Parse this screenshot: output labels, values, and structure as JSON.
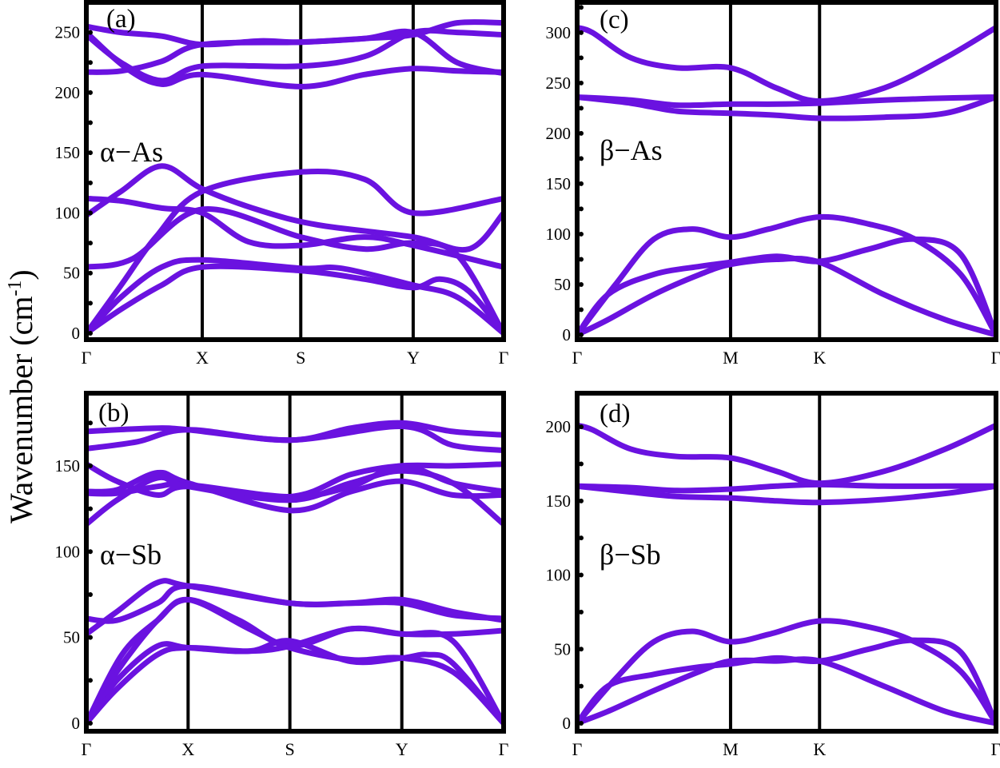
{
  "figure": {
    "ylabel_main": "Wavenumber",
    "ylabel_unit_open": "(cm",
    "ylabel_unit_sup": "-1",
    "ylabel_unit_close": ")",
    "line_color": "#6a12e0"
  },
  "chart_data": [
    {
      "type": "line",
      "panel_label": "(a)",
      "material": "α−As",
      "ylim": [
        0,
        275
      ],
      "yticks": [
        0,
        50,
        100,
        150,
        200,
        250
      ],
      "xticks": [
        "Γ",
        "X",
        "S",
        "Y",
        "Γ"
      ],
      "xtick_positions": [
        0,
        1,
        1.85,
        2.82,
        3.6
      ],
      "series": [
        {
          "x": [
            0,
            0.3,
            0.6,
            1.0,
            1.85,
            2.4,
            2.82,
            3.6
          ],
          "y": [
            0,
            40,
            80,
            118,
            134,
            128,
            100,
            112
          ]
        },
        {
          "x": [
            0,
            0.3,
            0.65,
            1.0,
            1.4,
            1.85,
            2.4,
            2.82,
            3.6
          ],
          "y": [
            112,
            110,
            104,
            100,
            76,
            73,
            80,
            73,
            55
          ]
        },
        {
          "x": [
            0,
            0.3,
            0.65,
            1.0,
            1.5,
            2.0,
            2.82,
            3.3,
            3.6
          ],
          "y": [
            98,
            118,
            139,
            120,
            102,
            90,
            80,
            70,
            100
          ]
        },
        {
          "x": [
            0,
            0.4,
            1.0,
            1.85,
            2.4,
            2.82,
            3.2,
            3.6
          ],
          "y": [
            55,
            62,
            103,
            80,
            70,
            75,
            65,
            0
          ]
        },
        {
          "x": [
            0,
            0.3,
            0.65,
            1.0,
            1.85,
            2.2,
            2.82,
            3.2,
            3.6
          ],
          "y": [
            0,
            30,
            55,
            61,
            54,
            54,
            40,
            30,
            0
          ]
        },
        {
          "x": [
            0,
            0.3,
            0.65,
            1.0,
            1.85,
            2.4,
            2.82,
            3.05,
            3.3,
            3.6
          ],
          "y": [
            0,
            20,
            40,
            55,
            52,
            45,
            38,
            45,
            35,
            0
          ]
        },
        {
          "x": [
            0,
            0.3,
            0.65,
            1.0,
            1.5,
            1.85,
            2.4,
            2.82,
            3.2,
            3.6
          ],
          "y": [
            255,
            250,
            247,
            240,
            243,
            242,
            245,
            248,
            258,
            258
          ]
        },
        {
          "x": [
            0,
            0.3,
            0.65,
            1.0,
            1.85,
            2.4,
            2.82,
            3.2,
            3.6
          ],
          "y": [
            248,
            225,
            210,
            222,
            222,
            230,
            250,
            250,
            248
          ]
        },
        {
          "x": [
            0,
            0.35,
            0.65,
            1.0,
            1.85,
            2.4,
            2.82,
            3.2,
            3.6
          ],
          "y": [
            250,
            220,
            207,
            215,
            205,
            215,
            220,
            218,
            217
          ]
        },
        {
          "x": [
            0,
            0.3,
            0.65,
            1.0,
            1.85,
            2.4,
            2.82,
            3.2,
            3.6
          ],
          "y": [
            217,
            218,
            226,
            240,
            242,
            245,
            250,
            225,
            216
          ]
        }
      ]
    },
    {
      "type": "line",
      "panel_label": "(b)",
      "material": "α−Sb",
      "ylim": [
        0,
        190
      ],
      "yticks": [
        0,
        50,
        100,
        150
      ],
      "xticks": [
        "Γ",
        "X",
        "S",
        "Y",
        "Γ"
      ],
      "xtick_positions": [
        0,
        1,
        2,
        3.1,
        4.1
      ],
      "series": [
        {
          "x": [
            0,
            0.3,
            0.7,
            1.0,
            2.0,
            2.6,
            3.1,
            3.6,
            4.1
          ],
          "y": [
            170,
            171,
            172,
            171,
            165,
            172,
            175,
            170,
            168
          ]
        },
        {
          "x": [
            0,
            0.5,
            1.0,
            2.0,
            3.1,
            3.6,
            4.1
          ],
          "y": [
            160,
            164,
            171,
            165,
            173,
            162,
            159
          ]
        },
        {
          "x": [
            0,
            0.3,
            0.7,
            1.0,
            2.0,
            2.6,
            3.1,
            3.6,
            4.1
          ],
          "y": [
            151,
            141,
            133,
            138,
            132,
            145,
            150,
            150,
            151
          ]
        },
        {
          "x": [
            0,
            0.3,
            0.7,
            1.0,
            2.0,
            2.6,
            3.1,
            3.6,
            4.1
          ],
          "y": [
            135,
            136,
            146,
            140,
            124,
            135,
            141,
            133,
            133
          ]
        },
        {
          "x": [
            0,
            0.3,
            0.7,
            1.0,
            2.0,
            2.6,
            3.1,
            3.6,
            4.1
          ],
          "y": [
            116,
            130,
            143,
            138,
            130,
            140,
            147,
            140,
            116
          ]
        },
        {
          "x": [
            0,
            0.3,
            0.7,
            1.0,
            2.0,
            2.6,
            3.1,
            3.6,
            4.1
          ],
          "y": [
            134,
            134,
            138,
            139,
            132,
            138,
            150,
            140,
            135
          ]
        },
        {
          "x": [
            0,
            0.3,
            0.7,
            1.0,
            2.0,
            2.6,
            3.1,
            3.6,
            4.1
          ],
          "y": [
            52,
            65,
            82,
            80,
            70,
            70,
            72,
            65,
            60
          ]
        },
        {
          "x": [
            0,
            0.3,
            0.7,
            1.0,
            2.0,
            2.6,
            3.1,
            3.6,
            4.1
          ],
          "y": [
            61,
            60,
            70,
            80,
            70,
            70,
            70,
            63,
            61
          ]
        },
        {
          "x": [
            0,
            0.3,
            0.7,
            1.0,
            1.5,
            2.0,
            2.6,
            3.1,
            3.6,
            4.1
          ],
          "y": [
            0,
            30,
            60,
            72,
            60,
            45,
            55,
            52,
            52,
            54
          ]
        },
        {
          "x": [
            0,
            0.35,
            0.7,
            1.0,
            1.6,
            2.0,
            2.6,
            3.1,
            3.6,
            4.1
          ],
          "y": [
            0,
            40,
            60,
            72,
            55,
            44,
            37,
            38,
            30,
            0
          ]
        },
        {
          "x": [
            0,
            0.3,
            0.7,
            1.0,
            1.6,
            2.0,
            2.6,
            3.1,
            3.35,
            3.6,
            4.1
          ],
          "y": [
            0,
            25,
            45,
            44,
            42,
            48,
            36,
            38,
            40,
            35,
            0
          ]
        },
        {
          "x": [
            0,
            0.3,
            0.7,
            1.0,
            1.6,
            2.0,
            2.6,
            3.1,
            3.6,
            4.1
          ],
          "y": [
            0,
            20,
            40,
            44,
            42,
            45,
            55,
            52,
            48,
            0
          ]
        }
      ]
    },
    {
      "type": "line",
      "panel_label": "(c)",
      "material": "β−As",
      "ylim": [
        0,
        330
      ],
      "yticks": [
        0,
        50,
        100,
        150,
        200,
        250,
        300
      ],
      "xticks": [
        "Γ",
        "M",
        "K",
        "Γ"
      ],
      "xtick_positions": [
        0,
        1,
        1.58,
        2.73
      ],
      "series": [
        {
          "x": [
            0,
            0.1,
            0.35,
            0.65,
            1.0,
            1.3,
            1.58,
            2.0,
            2.4,
            2.73
          ],
          "y": [
            305,
            300,
            275,
            265,
            265,
            245,
            232,
            245,
            275,
            305
          ]
        },
        {
          "x": [
            0,
            0.35,
            0.65,
            1.0,
            1.3,
            1.58,
            2.0,
            2.4,
            2.73
          ],
          "y": [
            236,
            233,
            228,
            229,
            229,
            230,
            233,
            235,
            236
          ]
        },
        {
          "x": [
            0,
            0.35,
            0.65,
            1.0,
            1.3,
            1.58,
            2.0,
            2.4,
            2.73
          ],
          "y": [
            236,
            230,
            222,
            220,
            218,
            215,
            216,
            220,
            236
          ]
        },
        {
          "x": [
            0,
            0.25,
            0.5,
            0.75,
            1.0,
            1.25,
            1.58,
            1.9,
            2.2,
            2.5,
            2.73
          ],
          "y": [
            0,
            50,
            95,
            105,
            97,
            105,
            117,
            110,
            95,
            60,
            0
          ]
        },
        {
          "x": [
            0,
            0.2,
            0.5,
            0.8,
            1.0,
            1.3,
            1.58,
            1.9,
            2.2,
            2.5,
            2.73
          ],
          "y": [
            0,
            40,
            60,
            68,
            72,
            78,
            73,
            85,
            95,
            80,
            0
          ]
        },
        {
          "x": [
            0,
            0.2,
            0.5,
            0.8,
            1.0,
            1.3,
            1.58,
            2.0,
            2.4,
            2.73
          ],
          "y": [
            0,
            15,
            40,
            60,
            70,
            75,
            72,
            40,
            15,
            0
          ]
        }
      ]
    },
    {
      "type": "line",
      "panel_label": "(d)",
      "material": "β−Sb",
      "ylim": [
        0,
        220
      ],
      "yticks": [
        0,
        50,
        100,
        150,
        200
      ],
      "xticks": [
        "Γ",
        "M",
        "K",
        "Γ"
      ],
      "xtick_positions": [
        0,
        1,
        1.58,
        2.73
      ],
      "series": [
        {
          "x": [
            0,
            0.1,
            0.35,
            0.65,
            1.0,
            1.3,
            1.58,
            2.0,
            2.4,
            2.73
          ],
          "y": [
            201,
            198,
            185,
            180,
            179,
            170,
            162,
            170,
            185,
            201
          ]
        },
        {
          "x": [
            0,
            0.35,
            0.65,
            1.0,
            1.3,
            1.58,
            2.0,
            2.4,
            2.73
          ],
          "y": [
            160,
            159,
            157,
            158,
            160,
            161,
            160,
            160,
            160
          ]
        },
        {
          "x": [
            0,
            0.35,
            0.65,
            1.0,
            1.3,
            1.58,
            2.0,
            2.4,
            2.73
          ],
          "y": [
            160,
            156,
            153,
            152,
            150,
            149,
            151,
            155,
            160
          ]
        },
        {
          "x": [
            0,
            0.25,
            0.5,
            0.75,
            1.0,
            1.25,
            1.58,
            1.9,
            2.2,
            2.5,
            2.73
          ],
          "y": [
            0,
            30,
            55,
            62,
            55,
            60,
            69,
            65,
            55,
            35,
            0
          ]
        },
        {
          "x": [
            0,
            0.2,
            0.5,
            0.8,
            1.0,
            1.3,
            1.58,
            1.9,
            2.2,
            2.5,
            2.73
          ],
          "y": [
            0,
            25,
            33,
            38,
            40,
            44,
            42,
            50,
            56,
            48,
            0
          ]
        },
        {
          "x": [
            0,
            0.2,
            0.5,
            0.8,
            1.0,
            1.3,
            1.58,
            2.0,
            2.4,
            2.73
          ],
          "y": [
            0,
            8,
            22,
            35,
            42,
            42,
            42,
            25,
            8,
            0
          ]
        }
      ]
    }
  ]
}
